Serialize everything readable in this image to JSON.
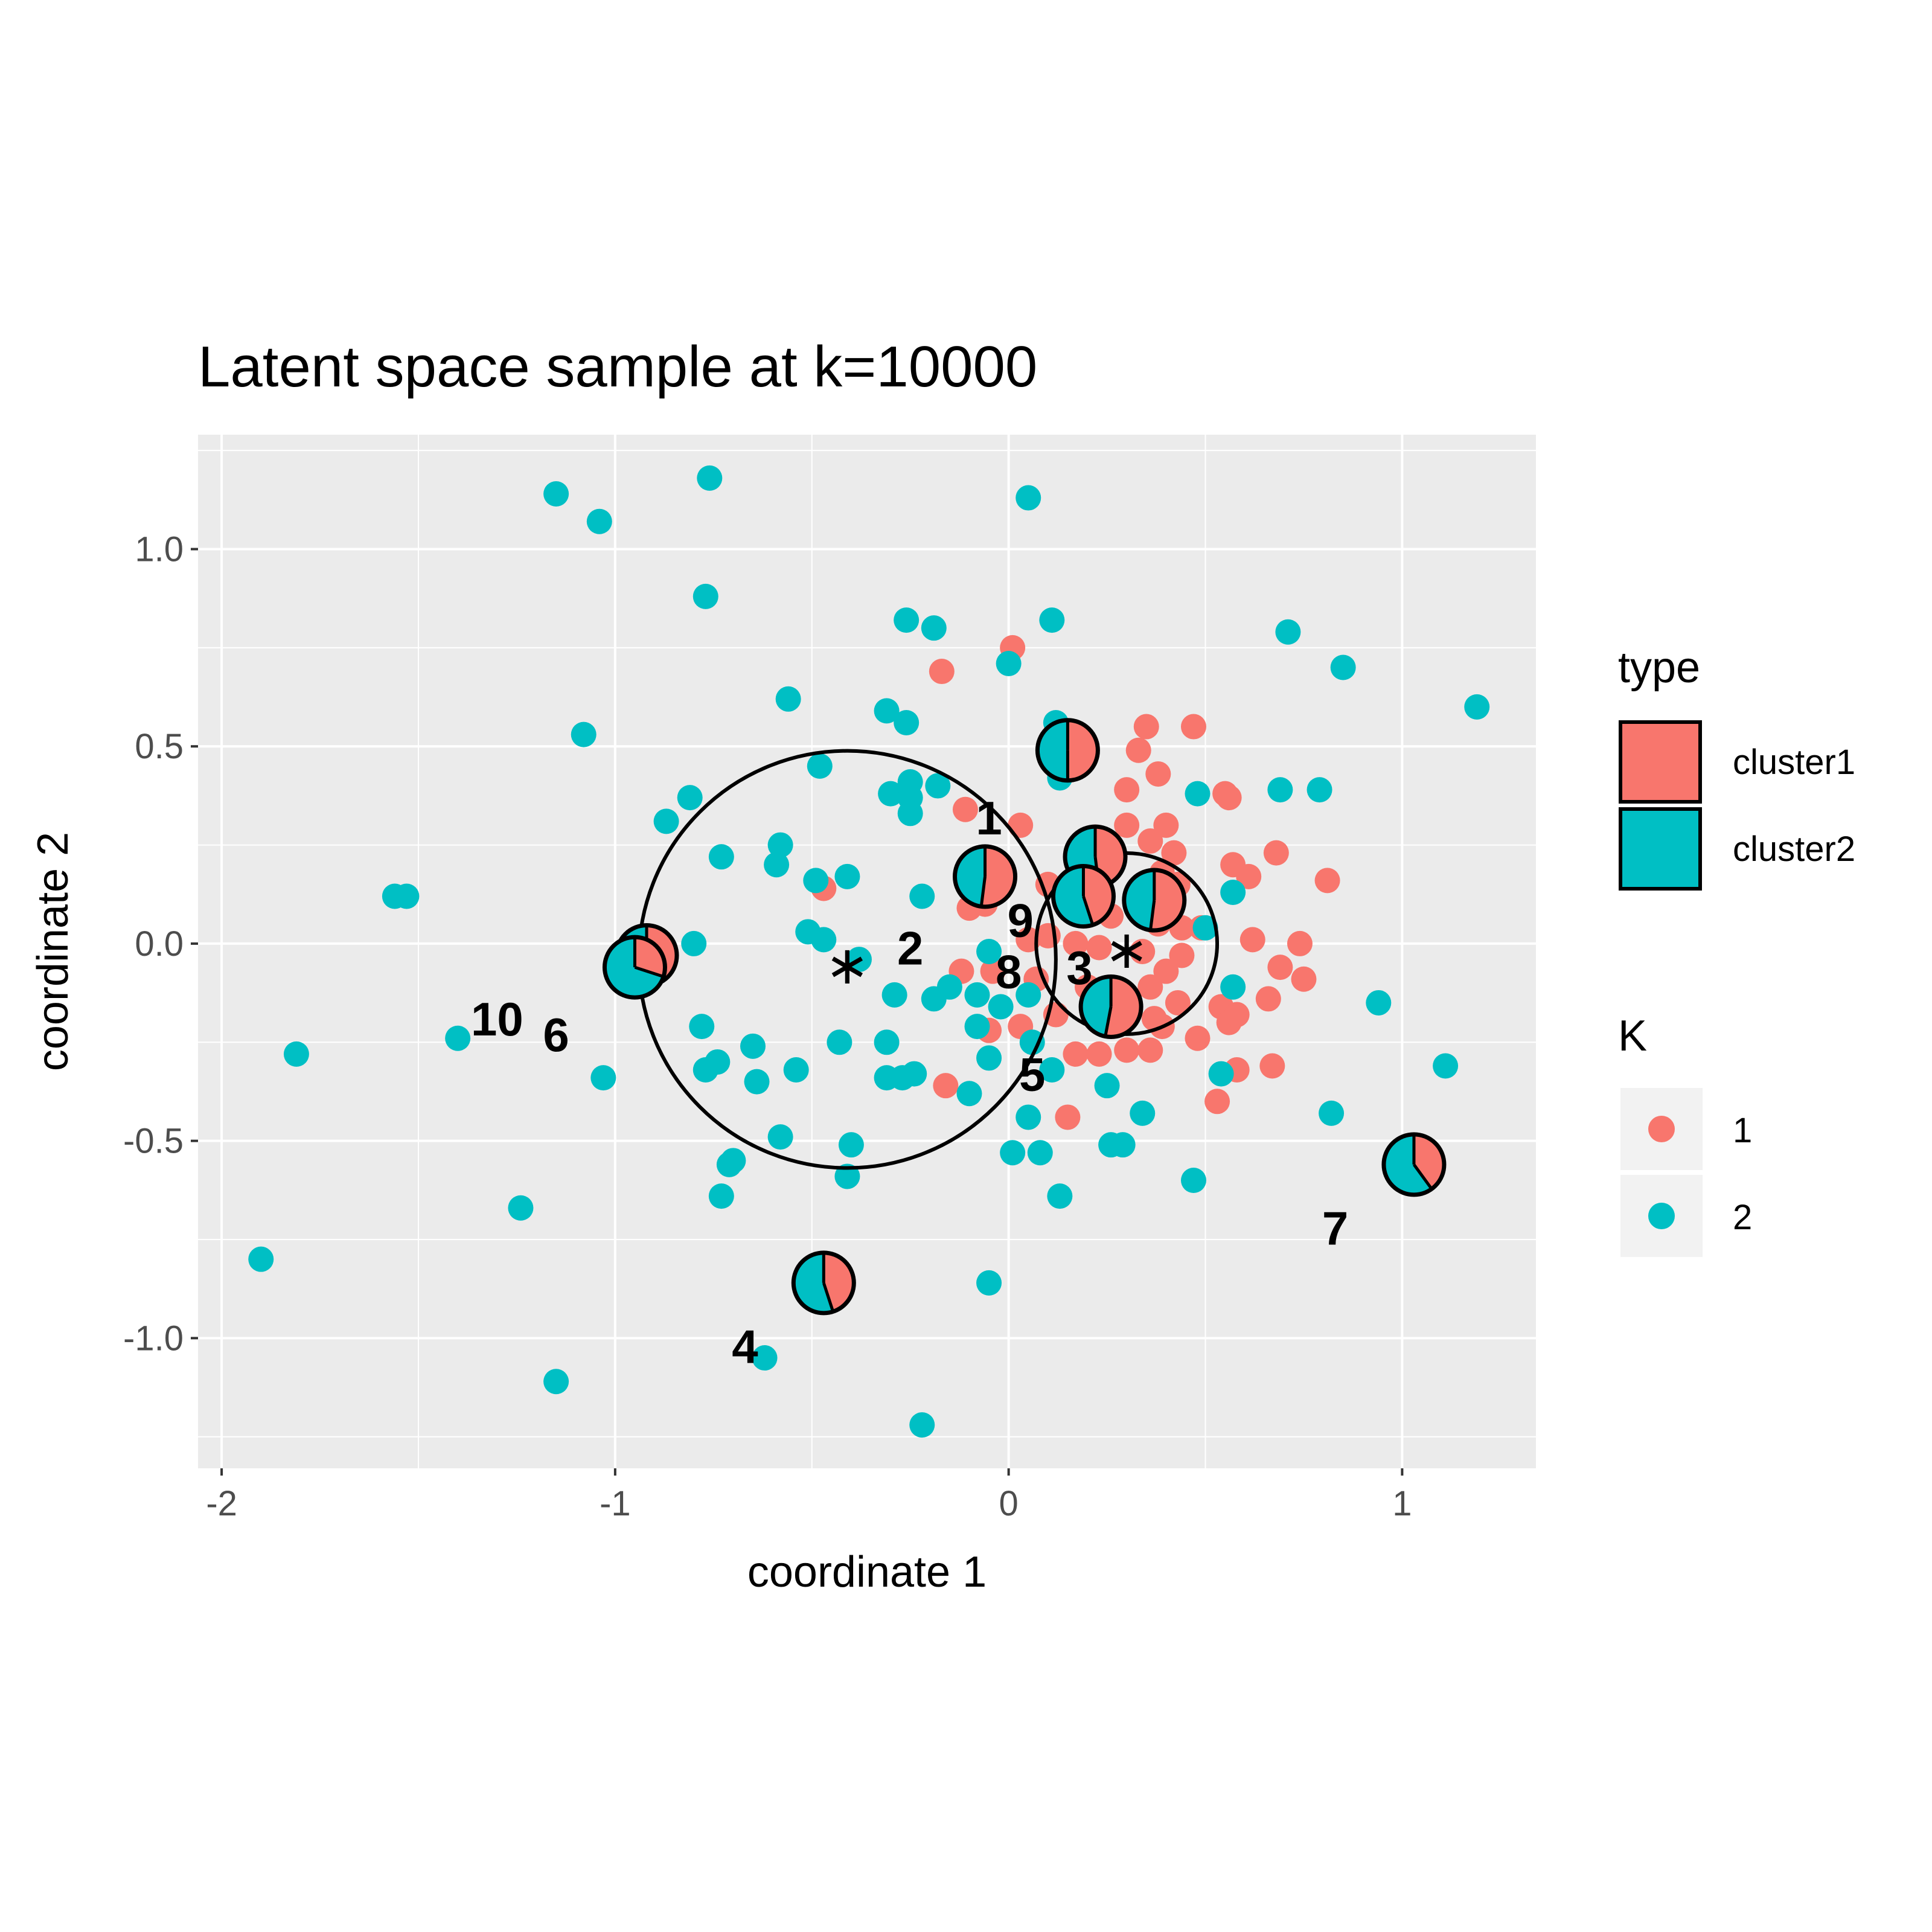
{
  "chart_data": {
    "type": "scatter",
    "title": "Latent space sample at k=10000",
    "xlabel": "coordinate 1",
    "ylabel": "coordinate 2",
    "xlim": [
      -2.06,
      1.34
    ],
    "ylim": [
      -1.33,
      1.29
    ],
    "x_ticks": [
      {
        "value": -2,
        "label": "-2"
      },
      {
        "value": -1,
        "label": "-1"
      },
      {
        "value": 0,
        "label": "0"
      },
      {
        "value": 1,
        "label": "1"
      }
    ],
    "y_ticks": [
      {
        "value": 1.0,
        "label": "1.0"
      },
      {
        "value": 0.5,
        "label": "0.5"
      },
      {
        "value": 0.0,
        "label": "0.0"
      },
      {
        "value": -0.5,
        "label": "-0.5"
      },
      {
        "value": -1.0,
        "label": "-1.0"
      }
    ],
    "grid": true,
    "legend_type": {
      "title": "type",
      "entries": [
        {
          "label": "cluster1",
          "color": "#F8766D"
        },
        {
          "label": "cluster2",
          "color": "#00BFC4"
        }
      ]
    },
    "legend_k": {
      "title": "K",
      "entries": [
        {
          "label": "1",
          "color": "#F8766D"
        },
        {
          "label": "2",
          "color": "#00BFC4"
        }
      ]
    },
    "colors": {
      "cluster1": "#F8766D",
      "cluster2": "#00BFC4",
      "panel": "#EBEBEB",
      "grid": "#FFFFFF"
    },
    "series": [
      {
        "name": "1",
        "color": "#F8766D",
        "points": [
          [
            -0.17,
            0.69
          ],
          [
            0.01,
            0.75
          ],
          [
            0.35,
            0.55
          ],
          [
            0.47,
            0.55
          ],
          [
            0.33,
            0.49
          ],
          [
            0.38,
            0.43
          ],
          [
            -0.11,
            0.34
          ],
          [
            0.03,
            0.3
          ],
          [
            0.3,
            0.39
          ],
          [
            0.55,
            0.38
          ],
          [
            0.56,
            0.37
          ],
          [
            0.4,
            0.3
          ],
          [
            0.3,
            0.3
          ],
          [
            0.22,
            0.27
          ],
          [
            0.36,
            0.26
          ],
          [
            0.42,
            0.23
          ],
          [
            0.68,
            0.23
          ],
          [
            0.57,
            0.2
          ],
          [
            0.61,
            0.17
          ],
          [
            0.81,
            0.16
          ],
          [
            0.39,
            0.18
          ],
          [
            0.43,
            0.15
          ],
          [
            0.1,
            0.15
          ],
          [
            -0.06,
            0.1
          ],
          [
            -0.1,
            0.09
          ],
          [
            0.26,
            0.07
          ],
          [
            0.38,
            0.05
          ],
          [
            0.44,
            0.04
          ],
          [
            0.49,
            0.04
          ],
          [
            0.62,
            0.01
          ],
          [
            0.74,
            0.0
          ],
          [
            0.05,
            0.01
          ],
          [
            0.1,
            0.02
          ],
          [
            0.17,
            0.0
          ],
          [
            0.23,
            -0.01
          ],
          [
            0.34,
            -0.02
          ],
          [
            0.44,
            -0.03
          ],
          [
            0.4,
            -0.07
          ],
          [
            0.69,
            -0.06
          ],
          [
            0.75,
            -0.09
          ],
          [
            -0.12,
            -0.07
          ],
          [
            -0.04,
            -0.07
          ],
          [
            0.07,
            -0.09
          ],
          [
            0.2,
            -0.11
          ],
          [
            0.36,
            -0.11
          ],
          [
            0.43,
            -0.15
          ],
          [
            0.54,
            -0.16
          ],
          [
            0.56,
            -0.2
          ],
          [
            0.58,
            -0.18
          ],
          [
            0.66,
            -0.14
          ],
          [
            0.37,
            -0.19
          ],
          [
            0.39,
            -0.21
          ],
          [
            0.12,
            -0.18
          ],
          [
            -0.05,
            -0.22
          ],
          [
            0.03,
            -0.21
          ],
          [
            0.48,
            -0.24
          ],
          [
            0.17,
            -0.28
          ],
          [
            0.23,
            -0.28
          ],
          [
            0.3,
            -0.27
          ],
          [
            0.36,
            -0.27
          ],
          [
            0.58,
            -0.32
          ],
          [
            0.67,
            -0.31
          ],
          [
            -0.16,
            -0.36
          ],
          [
            0.53,
            -0.4
          ],
          [
            0.15,
            -0.44
          ],
          [
            -0.47,
            0.14
          ]
        ]
      },
      {
        "name": "2",
        "color": "#00BFC4",
        "points": [
          [
            -1.15,
            1.14
          ],
          [
            -1.04,
            1.07
          ],
          [
            -0.76,
            1.18
          ],
          [
            0.05,
            1.13
          ],
          [
            -0.77,
            0.88
          ],
          [
            -0.26,
            0.82
          ],
          [
            -0.19,
            0.8
          ],
          [
            0.11,
            0.82
          ],
          [
            0.71,
            0.79
          ],
          [
            0.85,
            0.7
          ],
          [
            1.19,
            0.6
          ],
          [
            0.0,
            0.71
          ],
          [
            -0.56,
            0.62
          ],
          [
            -0.31,
            0.59
          ],
          [
            -0.26,
            0.56
          ],
          [
            0.12,
            0.56
          ],
          [
            -1.08,
            0.53
          ],
          [
            -0.48,
            0.45
          ],
          [
            0.13,
            0.42
          ],
          [
            -0.25,
            0.41
          ],
          [
            -0.3,
            0.38
          ],
          [
            -0.25,
            0.37
          ],
          [
            -0.18,
            0.4
          ],
          [
            0.48,
            0.38
          ],
          [
            0.69,
            0.39
          ],
          [
            0.79,
            0.39
          ],
          [
            -0.81,
            0.37
          ],
          [
            -0.87,
            0.31
          ],
          [
            -0.25,
            0.33
          ],
          [
            -0.58,
            0.25
          ],
          [
            -0.73,
            0.22
          ],
          [
            -0.59,
            0.2
          ],
          [
            -0.49,
            0.16
          ],
          [
            -0.41,
            0.17
          ],
          [
            -1.56,
            0.12
          ],
          [
            -1.53,
            0.12
          ],
          [
            -0.22,
            0.12
          ],
          [
            0.57,
            0.13
          ],
          [
            -0.51,
            0.03
          ],
          [
            -0.47,
            0.01
          ],
          [
            -0.8,
            0.0
          ],
          [
            0.5,
            0.04
          ],
          [
            -0.38,
            -0.04
          ],
          [
            -0.05,
            -0.02
          ],
          [
            -0.19,
            -0.14
          ],
          [
            -0.15,
            -0.11
          ],
          [
            -0.29,
            -0.13
          ],
          [
            -0.08,
            -0.13
          ],
          [
            0.05,
            -0.13
          ],
          [
            -0.02,
            -0.16
          ],
          [
            0.57,
            -0.11
          ],
          [
            0.94,
            -0.15
          ],
          [
            -1.4,
            -0.24
          ],
          [
            -1.81,
            -0.28
          ],
          [
            -0.78,
            -0.21
          ],
          [
            -0.43,
            -0.25
          ],
          [
            -0.31,
            -0.25
          ],
          [
            0.06,
            -0.25
          ],
          [
            -0.08,
            -0.21
          ],
          [
            -0.65,
            -0.26
          ],
          [
            -0.77,
            -0.32
          ],
          [
            -0.74,
            -0.3
          ],
          [
            -0.54,
            -0.32
          ],
          [
            -0.05,
            -0.29
          ],
          [
            0.11,
            -0.32
          ],
          [
            -1.03,
            -0.34
          ],
          [
            -0.64,
            -0.35
          ],
          [
            -0.31,
            -0.34
          ],
          [
            -0.27,
            -0.34
          ],
          [
            -0.24,
            -0.33
          ],
          [
            -0.1,
            -0.38
          ],
          [
            0.25,
            -0.36
          ],
          [
            0.54,
            -0.33
          ],
          [
            1.11,
            -0.31
          ],
          [
            0.05,
            -0.44
          ],
          [
            0.34,
            -0.43
          ],
          [
            0.82,
            -0.43
          ],
          [
            -0.58,
            -0.49
          ],
          [
            -0.4,
            -0.51
          ],
          [
            -0.7,
            -0.55
          ],
          [
            -0.71,
            -0.56
          ],
          [
            0.01,
            -0.53
          ],
          [
            0.08,
            -0.53
          ],
          [
            0.26,
            -0.51
          ],
          [
            0.29,
            -0.51
          ],
          [
            -0.41,
            -0.59
          ],
          [
            0.47,
            -0.6
          ],
          [
            -0.73,
            -0.64
          ],
          [
            0.13,
            -0.64
          ],
          [
            -1.24,
            -0.67
          ],
          [
            -1.9,
            -0.8
          ],
          [
            -0.05,
            -0.86
          ],
          [
            -0.62,
            -1.05
          ],
          [
            -1.15,
            -1.11
          ],
          [
            -0.22,
            -1.22
          ]
        ]
      }
    ],
    "cluster_circles": [
      {
        "center": [
          -0.41,
          -0.04
        ],
        "radius": 0.53
      },
      {
        "center": [
          0.3,
          0.0
        ],
        "radius": 0.23
      }
    ],
    "pies": [
      {
        "x": 0.15,
        "y": 0.49,
        "p1": 0.5
      },
      {
        "x": -0.06,
        "y": 0.17,
        "p1": 0.52
      },
      {
        "x": 0.22,
        "y": 0.22,
        "p1": 0.48
      },
      {
        "x": 0.19,
        "y": 0.12,
        "p1": 0.45
      },
      {
        "x": 0.37,
        "y": 0.11,
        "p1": 0.52
      },
      {
        "x": 0.26,
        "y": -0.16,
        "p1": 0.53
      },
      {
        "x": -0.92,
        "y": -0.03,
        "p1": 0.5
      },
      {
        "x": -0.95,
        "y": -0.06,
        "p1": 0.3
      },
      {
        "x": -0.47,
        "y": -0.86,
        "p1": 0.45
      },
      {
        "x": 1.03,
        "y": -0.56,
        "p1": 0.4
      }
    ],
    "cluster_labels": [
      {
        "text": "1",
        "x": -0.05,
        "y": 0.32
      },
      {
        "text": "2",
        "x": -0.25,
        "y": -0.01
      },
      {
        "text": "3",
        "x": 0.18,
        "y": -0.06
      },
      {
        "text": "4",
        "x": -0.67,
        "y": -1.02
      },
      {
        "text": "5",
        "x": 0.06,
        "y": -0.33
      },
      {
        "text": "6",
        "x": -1.15,
        "y": -0.23
      },
      {
        "text": "7",
        "x": 0.83,
        "y": -0.72
      },
      {
        "text": "8",
        "x": 0.0,
        "y": -0.07
      },
      {
        "text": "9",
        "x": 0.03,
        "y": 0.06
      },
      {
        "text": "10",
        "x": -1.3,
        "y": -0.19
      }
    ],
    "centers": [
      {
        "x": -0.41,
        "y": -0.04
      },
      {
        "x": 0.3,
        "y": 0.0
      }
    ]
  }
}
